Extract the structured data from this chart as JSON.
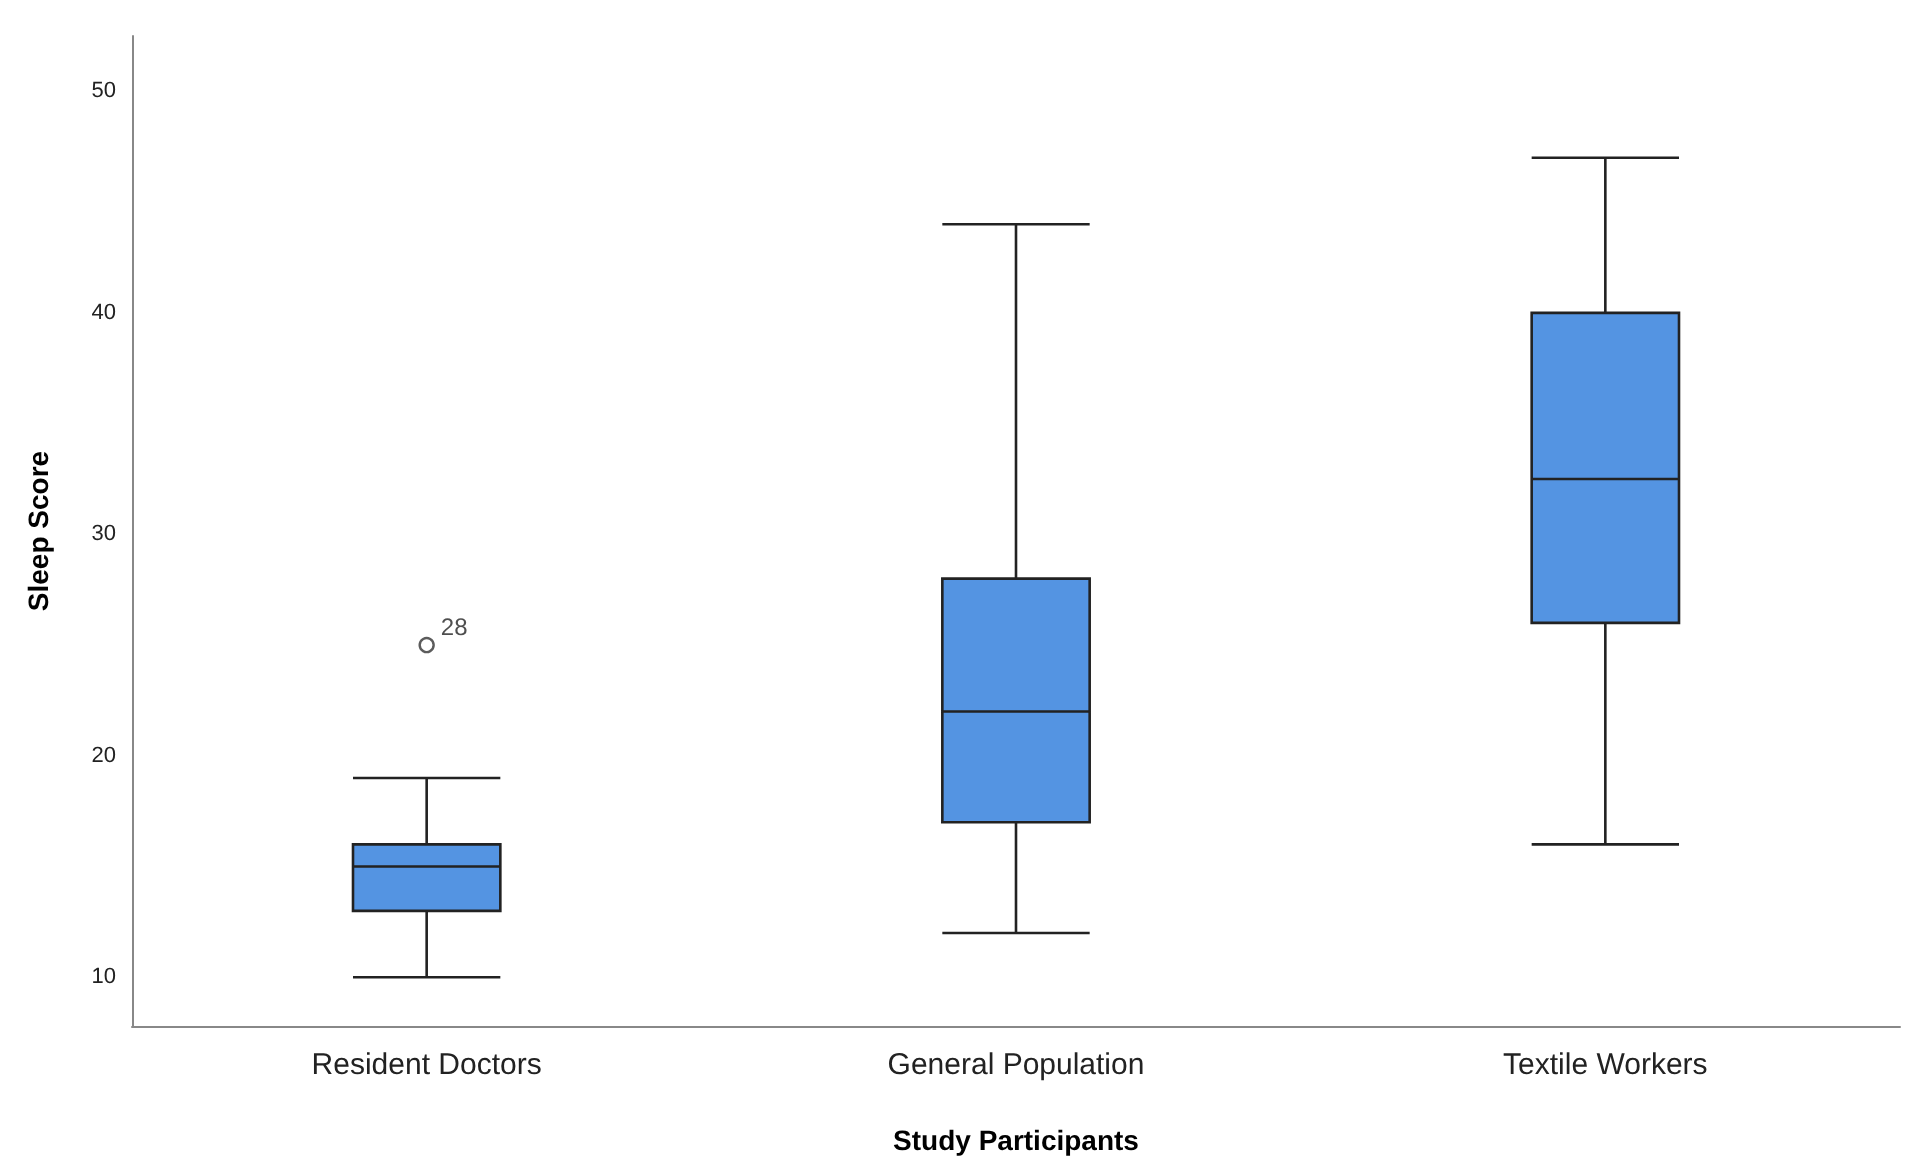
{
  "chart_data": {
    "type": "box",
    "xlabel": "Study Participants",
    "ylabel": "Sleep Score",
    "categories": [
      "Resident Doctors",
      "General Population",
      "Textile Workers"
    ],
    "color": "#5494e2",
    "boxes": [
      {
        "low": 10,
        "q1": 13,
        "median": 15,
        "q3": 16,
        "high": 19,
        "outliers": [
          25
        ]
      },
      {
        "low": 12,
        "q1": 17,
        "median": 22,
        "q3": 28,
        "high": 44
      },
      {
        "low": 16,
        "q1": 26,
        "median": 32.5,
        "q3": 40,
        "high": 47
      }
    ],
    "ylim": [
      7.8,
      52.5
    ],
    "yticks": [
      10,
      20,
      30,
      40,
      50
    ],
    "annotations": [
      "28"
    ],
    "grid": false
  }
}
